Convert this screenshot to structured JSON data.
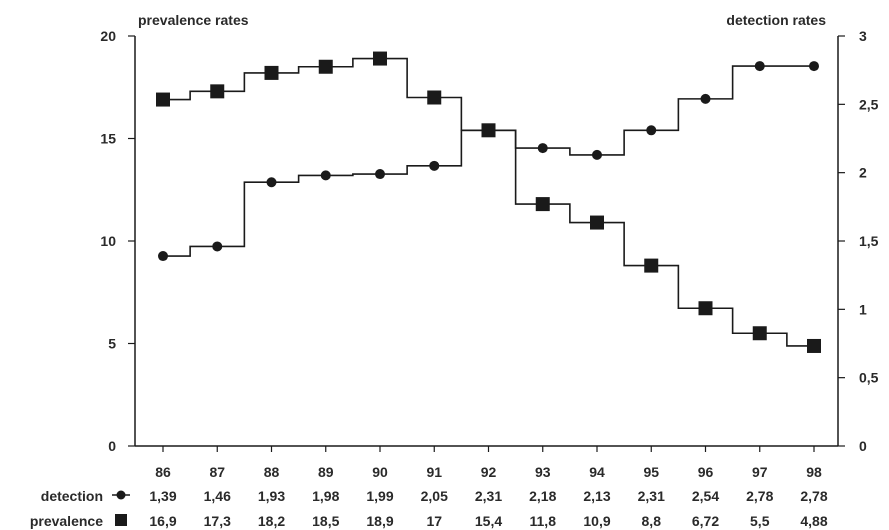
{
  "chart_data": {
    "type": "line",
    "step": true,
    "left_axis_title": "prevalence rates",
    "right_axis_title": "detection rates",
    "x": [
      "86",
      "87",
      "88",
      "89",
      "90",
      "91",
      "92",
      "93",
      "94",
      "95",
      "96",
      "97",
      "98"
    ],
    "left_ylim": [
      0,
      20
    ],
    "left_yticks": [
      "0",
      "5",
      "10",
      "15",
      "20"
    ],
    "right_ylim": [
      0,
      3
    ],
    "right_yticks": [
      "0",
      "0,5",
      "1",
      "1,5",
      "2",
      "2,5",
      "3"
    ],
    "grid": false,
    "series": [
      {
        "name": "detection",
        "axis": "right",
        "marker": "circle",
        "values": [
          1.39,
          1.46,
          1.93,
          1.98,
          1.99,
          2.05,
          2.31,
          2.18,
          2.13,
          2.31,
          2.54,
          2.78,
          2.78
        ],
        "labels": [
          "1,39",
          "1,46",
          "1,93",
          "1,98",
          "1,99",
          "2,05",
          "2,31",
          "2,18",
          "2,13",
          "2,31",
          "2,54",
          "2,78",
          "2,78"
        ]
      },
      {
        "name": "prevalence",
        "axis": "left",
        "marker": "square",
        "values": [
          16.9,
          17.3,
          18.2,
          18.5,
          18.9,
          17,
          15.4,
          11.8,
          10.9,
          8.8,
          6.72,
          5.5,
          4.88
        ],
        "labels": [
          "16,9",
          "17,3",
          "18,2",
          "18,5",
          "18,9",
          "17",
          "15,4",
          "11,8",
          "10,9",
          "8,8",
          "6,72",
          "5,5",
          "4,88"
        ]
      }
    ]
  }
}
